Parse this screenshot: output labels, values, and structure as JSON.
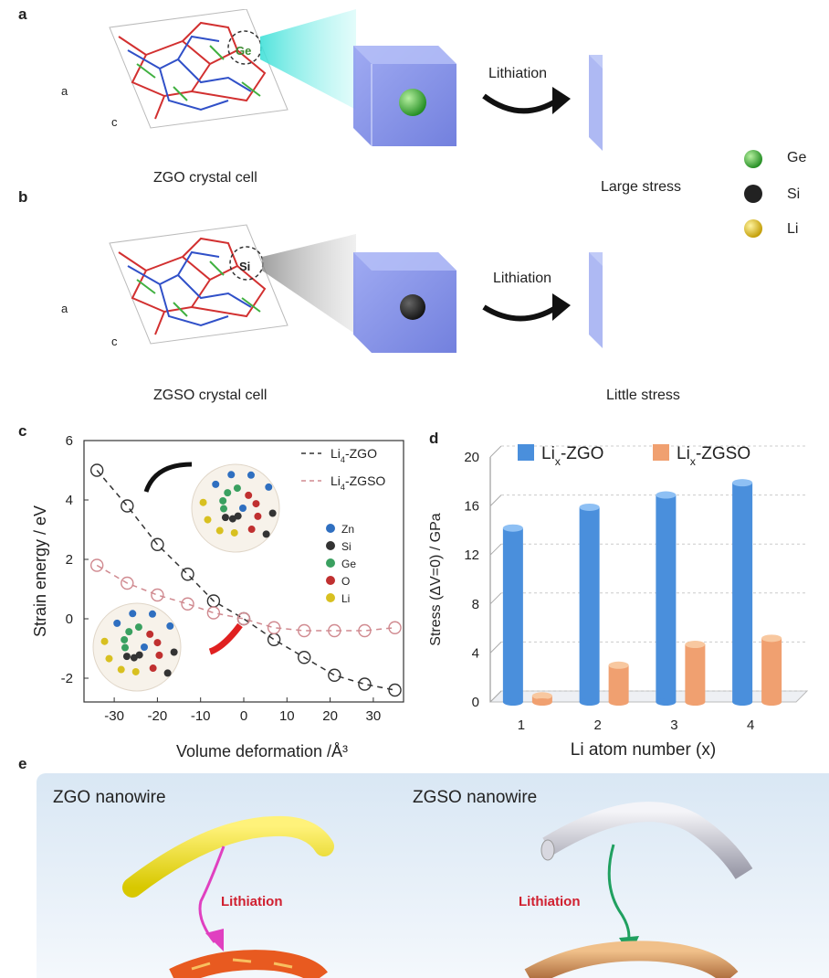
{
  "panel_a": {
    "letter": "a",
    "atom_label": "Ge",
    "axis_a": "a",
    "axis_c": "c",
    "cell_caption": "ZGO crystal cell",
    "arrow_label": "Lithiation",
    "result_caption": "Large stress"
  },
  "panel_b": {
    "letter": "b",
    "atom_label": "Si",
    "axis_a": "a",
    "axis_c": "c",
    "cell_caption": "ZGSO crystal cell",
    "arrow_label": "Lithiation",
    "result_caption": "Little stress"
  },
  "atom_legend": [
    {
      "label": "Ge",
      "color": "#2f9e2f"
    },
    {
      "label": "Si",
      "color": "#222222"
    },
    {
      "label": "Li",
      "color": "#e0c020"
    }
  ],
  "chart_data": [
    {
      "panel": "c",
      "type": "scatter",
      "xlabel": "Volume deformation /Å³",
      "ylabel": "Strain energy / eV",
      "xlim": [
        -37,
        37
      ],
      "ylim": [
        -2.8,
        6
      ],
      "xticks": [
        -30,
        -20,
        -10,
        0,
        10,
        20,
        30
      ],
      "yticks": [
        -2,
        0,
        2,
        4,
        6
      ],
      "series": [
        {
          "name": "Li4-ZGO",
          "name_main": "Li",
          "name_sub": "4",
          "name_rest": "-ZGO",
          "color": "#333333",
          "x": [
            -34,
            -27,
            -20,
            -13,
            -7,
            0,
            7,
            14,
            21,
            28,
            35
          ],
          "y": [
            5.0,
            3.8,
            2.5,
            1.5,
            0.6,
            0.0,
            -0.7,
            -1.3,
            -1.9,
            -2.2,
            -2.4
          ]
        },
        {
          "name": "Li4-ZGSO",
          "name_main": "Li",
          "name_sub": "4",
          "name_rest": "-ZGSO",
          "color": "#d08a90",
          "x": [
            -34,
            -27,
            -20,
            -13,
            -7,
            0,
            7,
            14,
            21,
            28,
            35
          ],
          "y": [
            1.8,
            1.2,
            0.8,
            0.5,
            0.2,
            0.0,
            -0.3,
            -0.4,
            -0.4,
            -0.4,
            -0.3
          ]
        }
      ],
      "atom_legend": [
        "Zn",
        "Si",
        "Ge",
        "O",
        "Li"
      ],
      "atom_legend_colors": [
        "#2f6fc0",
        "#333333",
        "#3aa060",
        "#c03030",
        "#d8c020"
      ]
    },
    {
      "panel": "d",
      "type": "bar",
      "xlabel": "Li atom number (x)",
      "ylabel": "Stress (ΔV=0) / GPa",
      "categories": [
        "1",
        "2",
        "3",
        "4"
      ],
      "ylim": [
        0,
        20
      ],
      "yticks": [
        0,
        4,
        8,
        12,
        16,
        20
      ],
      "series": [
        {
          "name": "Lix-ZGO",
          "name_main": "Li",
          "name_sub": "x",
          "name_rest": "-ZGO",
          "color": "#4a8fdc",
          "values": [
            14.2,
            15.9,
            16.9,
            17.9
          ]
        },
        {
          "name": "Lix-ZGSO",
          "name_main": "Li",
          "name_sub": "x",
          "name_rest": "-ZGSO",
          "color": "#f0a070",
          "values": [
            0.5,
            3.0,
            4.7,
            5.2
          ]
        }
      ]
    }
  ],
  "panel_e": {
    "letter": "e",
    "left_title": "ZGO nanowire",
    "right_title": "ZGSO nanowire",
    "left_arrow_label": "Lithiation",
    "right_arrow_label": "Lithiation"
  }
}
